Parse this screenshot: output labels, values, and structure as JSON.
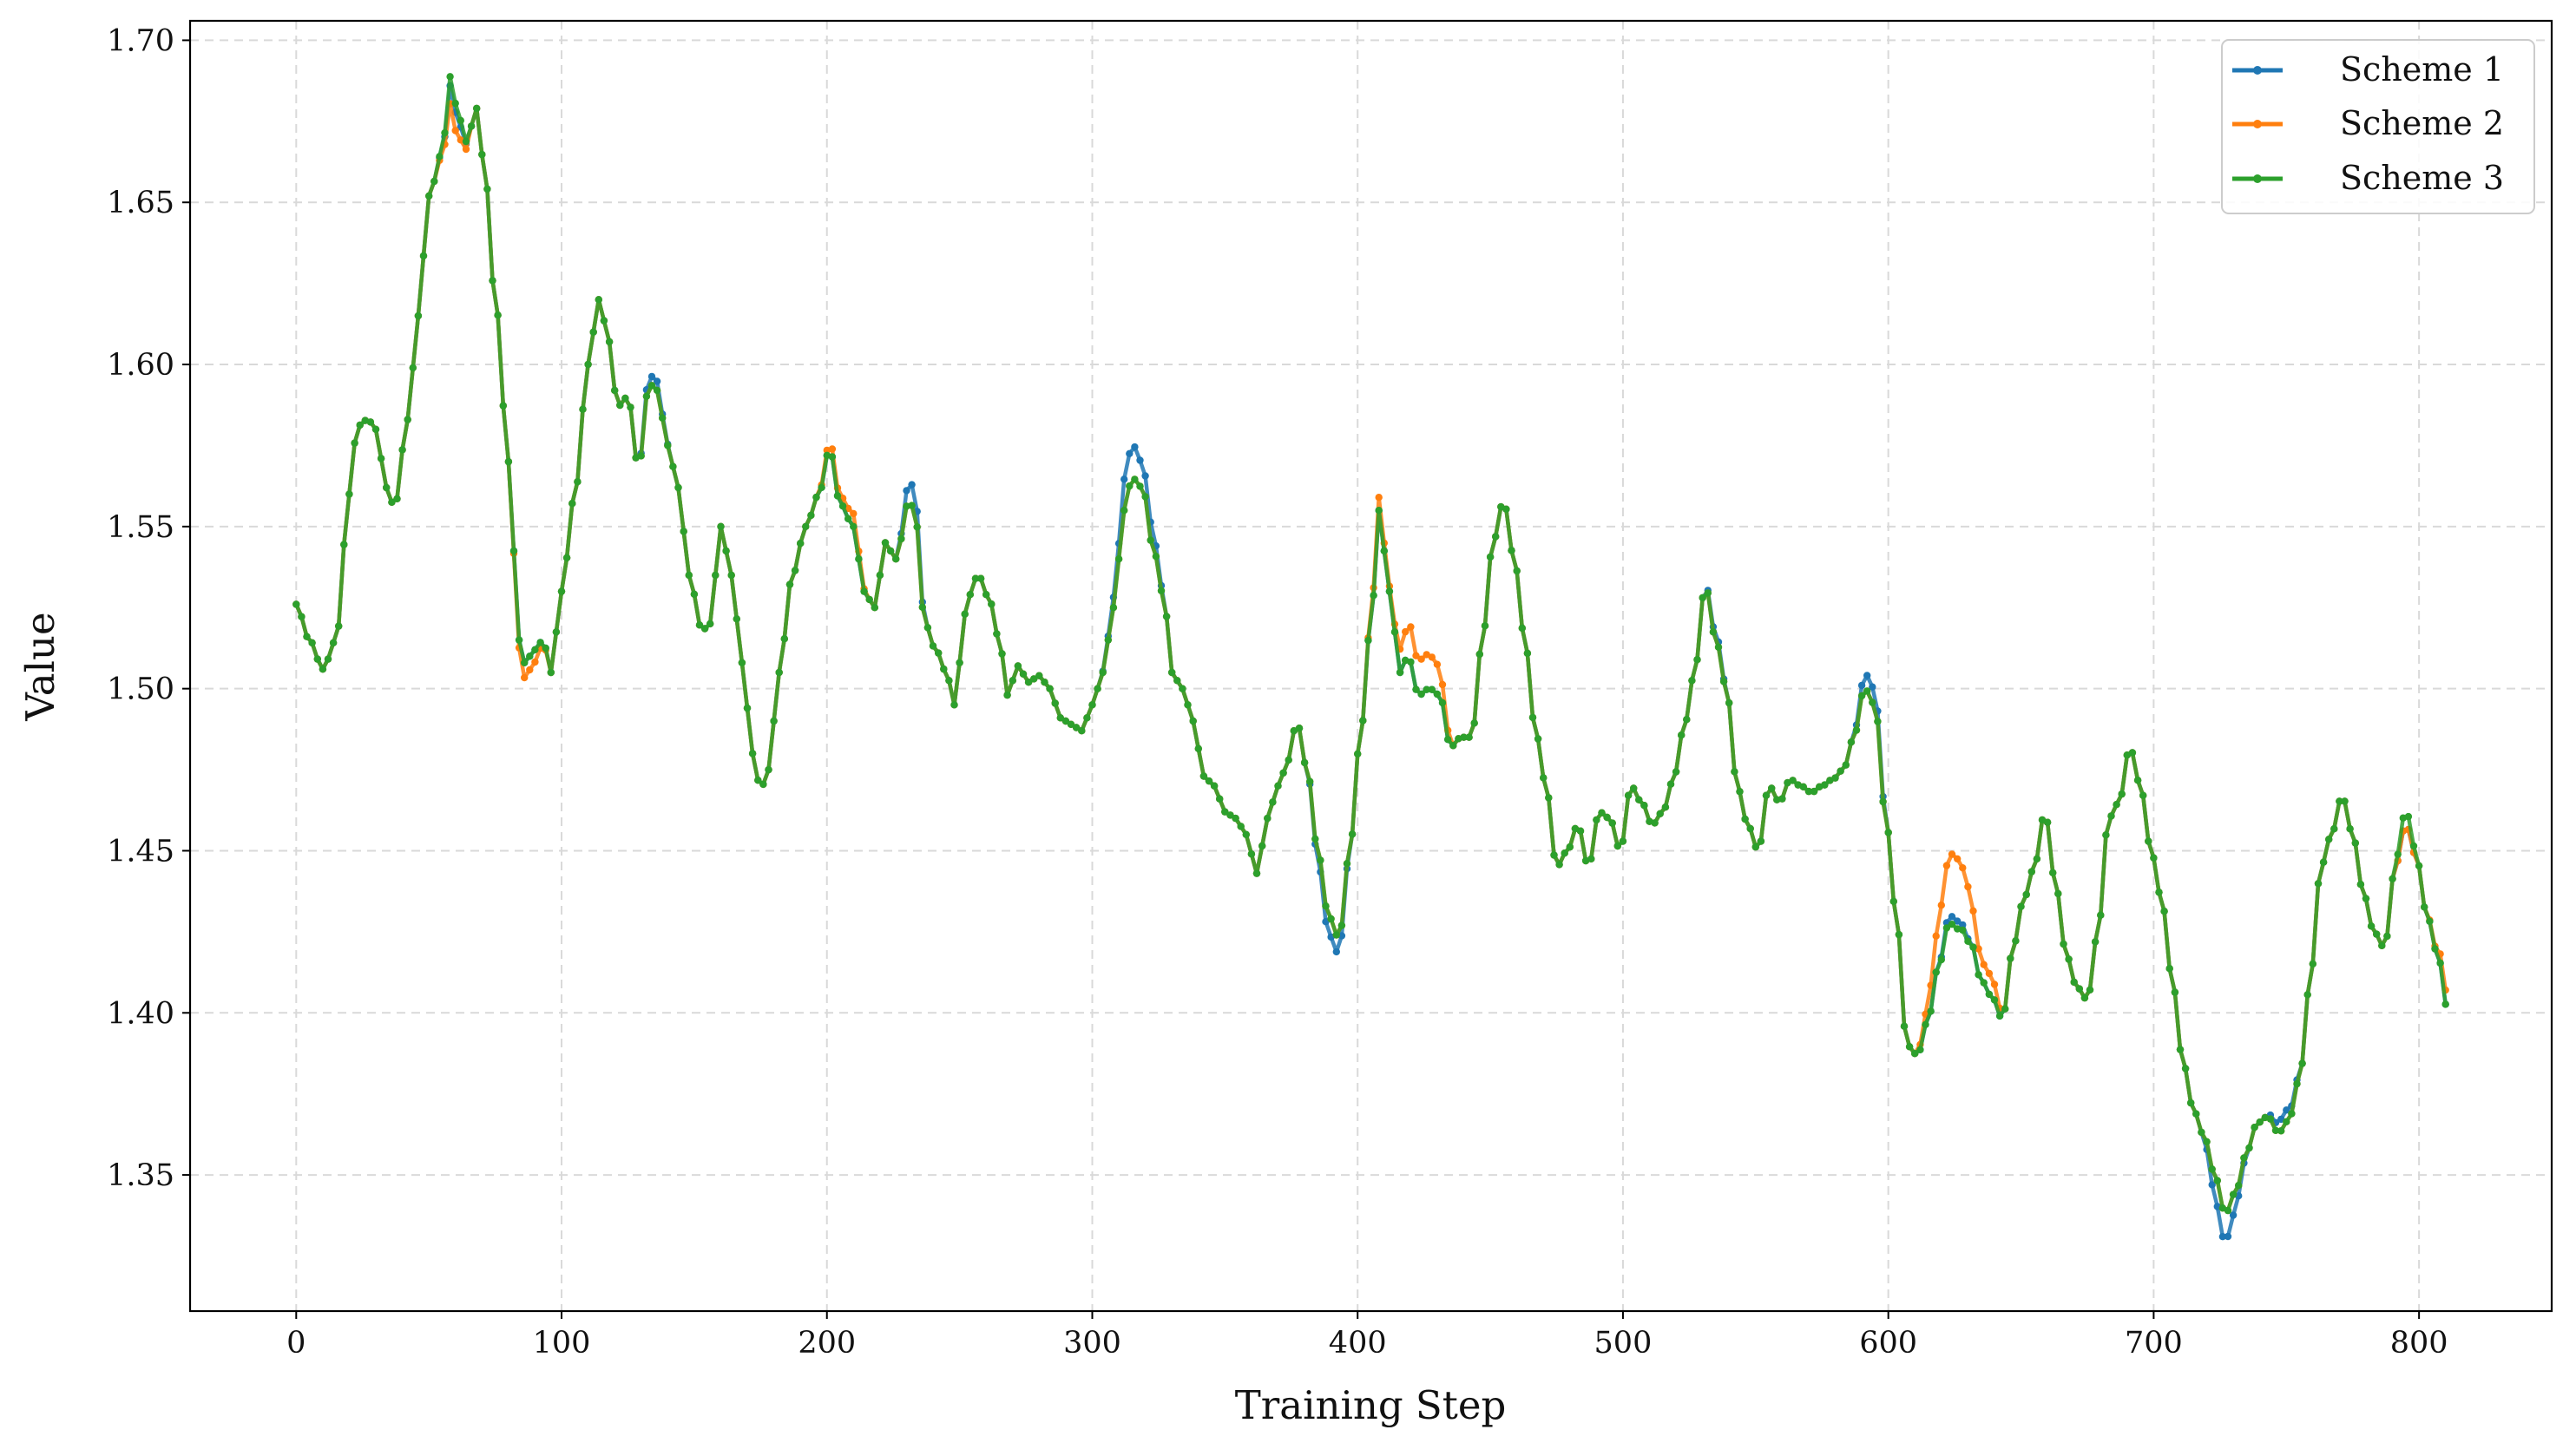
{
  "chart_data": {
    "type": "line",
    "title": "",
    "xlabel": "Training Step",
    "ylabel": "Value",
    "xlim": [
      -40,
      850
    ],
    "ylim": [
      1.308,
      1.706
    ],
    "xticks": [
      0,
      100,
      200,
      300,
      400,
      500,
      600,
      700,
      800
    ],
    "yticks": [
      1.35,
      1.4,
      1.45,
      1.5,
      1.55,
      1.6,
      1.65,
      1.7
    ],
    "xtick_labels": [
      "0",
      "100",
      "200",
      "300",
      "400",
      "500",
      "600",
      "700",
      "800"
    ],
    "ytick_labels": [
      "1.35",
      "1.40",
      "1.45",
      "1.50",
      "1.55",
      "1.60",
      "1.65",
      "1.70"
    ],
    "grid": true,
    "legend_position": "top-right",
    "step_interval": 2,
    "base_points": [
      [
        0,
        1.526
      ],
      [
        5,
        1.515
      ],
      [
        10,
        1.506
      ],
      [
        15,
        1.515
      ],
      [
        20,
        1.56
      ],
      [
        23,
        1.581
      ],
      [
        27,
        1.583
      ],
      [
        30,
        1.58
      ],
      [
        34,
        1.562
      ],
      [
        37,
        1.556
      ],
      [
        42,
        1.583
      ],
      [
        46,
        1.615
      ],
      [
        50,
        1.652
      ],
      [
        55,
        1.665
      ],
      [
        58,
        1.686
      ],
      [
        61,
        1.675
      ],
      [
        64,
        1.668
      ],
      [
        68,
        1.679
      ],
      [
        71,
        1.66
      ],
      [
        75,
        1.62
      ],
      [
        80,
        1.57
      ],
      [
        84,
        1.515
      ],
      [
        86,
        1.508
      ],
      [
        90,
        1.512
      ],
      [
        93,
        1.515
      ],
      [
        96,
        1.505
      ],
      [
        100,
        1.53
      ],
      [
        105,
        1.56
      ],
      [
        110,
        1.6
      ],
      [
        114,
        1.62
      ],
      [
        118,
        1.607
      ],
      [
        121,
        1.587
      ],
      [
        125,
        1.59
      ],
      [
        129,
        1.568
      ],
      [
        133,
        1.594
      ],
      [
        136,
        1.592
      ],
      [
        140,
        1.575
      ],
      [
        144,
        1.562
      ],
      [
        148,
        1.535
      ],
      [
        153,
        1.518
      ],
      [
        156,
        1.52
      ],
      [
        160,
        1.55
      ],
      [
        164,
        1.535
      ],
      [
        168,
        1.508
      ],
      [
        172,
        1.48
      ],
      [
        175,
        1.469
      ],
      [
        178,
        1.475
      ],
      [
        182,
        1.505
      ],
      [
        187,
        1.535
      ],
      [
        192,
        1.55
      ],
      [
        197,
        1.56
      ],
      [
        201,
        1.574
      ],
      [
        205,
        1.557
      ],
      [
        210,
        1.55
      ],
      [
        214,
        1.53
      ],
      [
        218,
        1.525
      ],
      [
        222,
        1.545
      ],
      [
        226,
        1.54
      ],
      [
        231,
        1.558
      ],
      [
        233,
        1.555
      ],
      [
        237,
        1.52
      ],
      [
        241,
        1.512
      ],
      [
        245,
        1.505
      ],
      [
        248,
        1.495
      ],
      [
        250,
        1.508
      ],
      [
        253,
        1.528
      ],
      [
        257,
        1.535
      ],
      [
        261,
        1.528
      ],
      [
        265,
        1.515
      ],
      [
        268,
        1.498
      ],
      [
        272,
        1.507
      ],
      [
        276,
        1.502
      ],
      [
        280,
        1.504
      ],
      [
        284,
        1.5
      ],
      [
        288,
        1.491
      ],
      [
        292,
        1.489
      ],
      [
        296,
        1.487
      ],
      [
        300,
        1.495
      ],
      [
        304,
        1.505
      ],
      [
        308,
        1.525
      ],
      [
        312,
        1.555
      ],
      [
        315,
        1.565
      ],
      [
        319,
        1.562
      ],
      [
        323,
        1.543
      ],
      [
        327,
        1.528
      ],
      [
        330,
        1.505
      ],
      [
        334,
        1.5
      ],
      [
        338,
        1.49
      ],
      [
        342,
        1.473
      ],
      [
        346,
        1.47
      ],
      [
        350,
        1.462
      ],
      [
        354,
        1.46
      ],
      [
        358,
        1.455
      ],
      [
        362,
        1.443
      ],
      [
        366,
        1.46
      ],
      [
        370,
        1.47
      ],
      [
        374,
        1.478
      ],
      [
        377,
        1.49
      ],
      [
        381,
        1.475
      ],
      [
        385,
        1.45
      ],
      [
        389,
        1.43
      ],
      [
        393,
        1.423
      ],
      [
        397,
        1.45
      ],
      [
        401,
        1.485
      ],
      [
        405,
        1.52
      ],
      [
        408,
        1.555
      ],
      [
        412,
        1.53
      ],
      [
        416,
        1.505
      ],
      [
        419,
        1.51
      ],
      [
        423,
        1.498
      ],
      [
        427,
        1.5
      ],
      [
        431,
        1.498
      ],
      [
        435,
        1.482
      ],
      [
        439,
        1.485
      ],
      [
        443,
        1.485
      ],
      [
        447,
        1.515
      ],
      [
        451,
        1.545
      ],
      [
        455,
        1.558
      ],
      [
        459,
        1.54
      ],
      [
        463,
        1.515
      ],
      [
        467,
        1.487
      ],
      [
        471,
        1.47
      ],
      [
        475,
        1.445
      ],
      [
        479,
        1.45
      ],
      [
        483,
        1.458
      ],
      [
        487,
        1.445
      ],
      [
        491,
        1.462
      ],
      [
        495,
        1.46
      ],
      [
        499,
        1.45
      ],
      [
        503,
        1.47
      ],
      [
        507,
        1.465
      ],
      [
        511,
        1.458
      ],
      [
        515,
        1.462
      ],
      [
        519,
        1.472
      ],
      [
        523,
        1.488
      ],
      [
        527,
        1.505
      ],
      [
        531,
        1.532
      ],
      [
        535,
        1.515
      ],
      [
        539,
        1.5
      ],
      [
        543,
        1.47
      ],
      [
        547,
        1.458
      ],
      [
        551,
        1.45
      ],
      [
        555,
        1.47
      ],
      [
        559,
        1.465
      ],
      [
        563,
        1.472
      ],
      [
        567,
        1.47
      ],
      [
        571,
        1.468
      ],
      [
        575,
        1.47
      ],
      [
        579,
        1.472
      ],
      [
        583,
        1.475
      ],
      [
        587,
        1.485
      ],
      [
        591,
        1.5
      ],
      [
        595,
        1.495
      ],
      [
        599,
        1.46
      ],
      [
        603,
        1.43
      ],
      [
        607,
        1.39
      ],
      [
        611,
        1.387
      ],
      [
        615,
        1.398
      ],
      [
        619,
        1.415
      ],
      [
        623,
        1.43
      ],
      [
        627,
        1.428
      ],
      [
        631,
        1.422
      ],
      [
        635,
        1.41
      ],
      [
        639,
        1.405
      ],
      [
        643,
        1.398
      ],
      [
        647,
        1.42
      ],
      [
        651,
        1.435
      ],
      [
        655,
        1.445
      ],
      [
        659,
        1.462
      ],
      [
        663,
        1.44
      ],
      [
        667,
        1.418
      ],
      [
        671,
        1.408
      ],
      [
        675,
        1.404
      ],
      [
        679,
        1.425
      ],
      [
        683,
        1.46
      ],
      [
        687,
        1.465
      ],
      [
        691,
        1.482
      ],
      [
        695,
        1.47
      ],
      [
        699,
        1.45
      ],
      [
        703,
        1.435
      ],
      [
        707,
        1.41
      ],
      [
        711,
        1.385
      ],
      [
        715,
        1.37
      ],
      [
        719,
        1.362
      ],
      [
        723,
        1.35
      ],
      [
        727,
        1.338
      ],
      [
        731,
        1.345
      ],
      [
        735,
        1.357
      ],
      [
        739,
        1.366
      ],
      [
        743,
        1.368
      ],
      [
        747,
        1.363
      ],
      [
        751,
        1.367
      ],
      [
        755,
        1.38
      ],
      [
        759,
        1.41
      ],
      [
        763,
        1.445
      ],
      [
        767,
        1.455
      ],
      [
        771,
        1.467
      ],
      [
        775,
        1.455
      ],
      [
        779,
        1.437
      ],
      [
        783,
        1.425
      ],
      [
        787,
        1.42
      ],
      [
        791,
        1.445
      ],
      [
        795,
        1.458
      ],
      [
        799,
        1.448
      ],
      [
        803,
        1.43
      ],
      [
        807,
        1.418
      ],
      [
        811,
        1.4
      ]
    ],
    "series": [
      {
        "name": "Scheme 1",
        "color": "#1f77b4",
        "offsets": [
          [
            308,
            0.002
          ],
          [
            312,
            0.006
          ],
          [
            315,
            0.008
          ],
          [
            319,
            0.006
          ],
          [
            323,
            0.004
          ],
          [
            385,
            -0.002
          ],
          [
            389,
            -0.005
          ],
          [
            393,
            -0.004
          ],
          [
            535,
            0.002
          ],
          [
            591,
            0.004
          ],
          [
            595,
            0.004
          ],
          [
            723,
            -0.006
          ],
          [
            727,
            -0.008
          ],
          [
            731,
            -0.004
          ],
          [
            747,
            0.003
          ],
          [
            751,
            0.003
          ],
          [
            231,
            0.004
          ],
          [
            233,
            0.004
          ],
          [
            133,
            0.002
          ],
          [
            136,
            0.002
          ]
        ]
      },
      {
        "name": "Scheme 2",
        "color": "#ff7f0e",
        "offsets": [
          [
            58,
            -0.004
          ],
          [
            61,
            -0.004
          ],
          [
            201,
            0.002
          ],
          [
            205,
            0.002
          ],
          [
            210,
            0.004
          ],
          [
            408,
            0.004
          ],
          [
            416,
            0.004
          ],
          [
            419,
            0.008
          ],
          [
            423,
            0.009
          ],
          [
            427,
            0.009
          ],
          [
            431,
            0.007
          ],
          [
            615,
            0.004
          ],
          [
            619,
            0.012
          ],
          [
            623,
            0.016
          ],
          [
            627,
            0.016
          ],
          [
            631,
            0.012
          ],
          [
            635,
            0.004
          ],
          [
            639,
            0.006
          ],
          [
            807,
            0.001
          ],
          [
            811,
            0.005
          ],
          [
            86,
            -0.004
          ],
          [
            90,
            -0.003
          ]
        ]
      },
      {
        "name": "Scheme 3",
        "color": "#2ca02c",
        "offsets": [
          [
            58,
            0.002
          ],
          [
            61,
            0.002
          ],
          [
            623,
            -0.002
          ],
          [
            627,
            -0.002
          ],
          [
            795,
            0.005
          ]
        ]
      }
    ]
  }
}
